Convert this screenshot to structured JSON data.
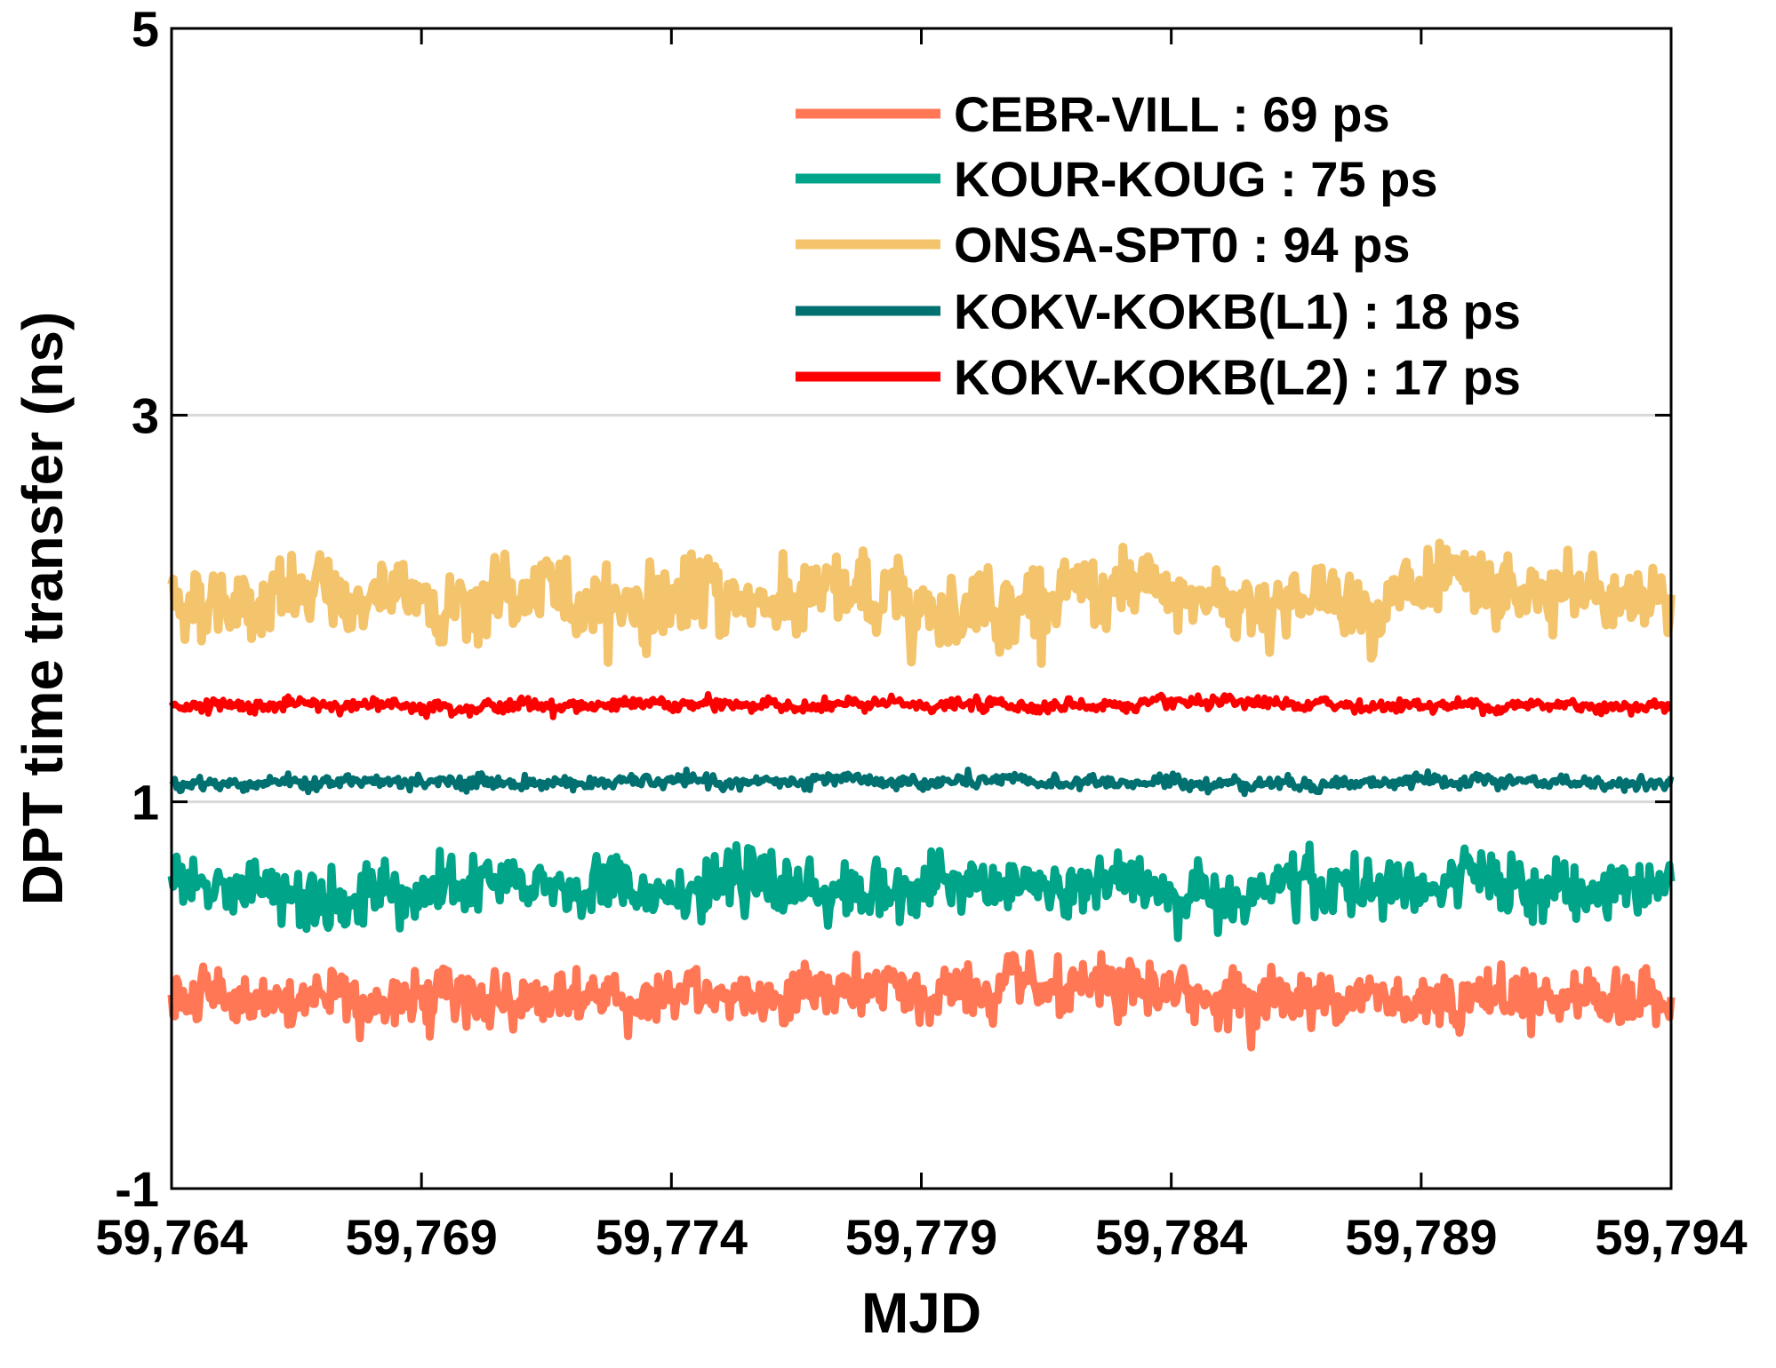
{
  "chart_data": {
    "type": "line",
    "xlabel": "MJD",
    "ylabel": "DPT time transfer (ns)",
    "xlim": [
      59764,
      59794
    ],
    "ylim": [
      -1,
      5
    ],
    "x_ticks": [
      59764,
      59769,
      59774,
      59779,
      59784,
      59789,
      59794
    ],
    "x_tick_labels": [
      "59,764",
      "59,769",
      "59,774",
      "59,779",
      "59,784",
      "59,789",
      "59,794"
    ],
    "y_ticks": [
      -1,
      1,
      3,
      5
    ],
    "y_tick_labels": [
      "-1",
      "1",
      "3",
      "5"
    ],
    "gridlines": [
      1,
      3
    ],
    "grid": "horizontal at major y ticks",
    "legend_position": "top-right",
    "series": [
      {
        "name": "CEBR-VILL",
        "legend_label": "CEBR-VILL : 69 ps",
        "color": "#ff7755",
        "mean": 0.0,
        "std_ps": 69
      },
      {
        "name": "KOUR-KOUG",
        "legend_label": "KOUR-KOUG : 75 ps",
        "color": "#00a488",
        "mean": 0.55,
        "std_ps": 75
      },
      {
        "name": "ONSA-SPT0",
        "legend_label": "ONSA-SPT0 : 94 ps",
        "color": "#f4c46c",
        "mean": 2.05,
        "std_ps": 94
      },
      {
        "name": "KOKV-KOKB(L1)",
        "legend_label": "KOKV-KOKB(L1) : 18 ps",
        "color": "#007070",
        "mean": 1.1,
        "std_ps": 18
      },
      {
        "name": "KOKV-KOKB(L2)",
        "legend_label": "KOKV-KOKB(L2) : 17 ps",
        "color": "#ff0000",
        "mean": 1.5,
        "std_ps": 17
      }
    ]
  }
}
